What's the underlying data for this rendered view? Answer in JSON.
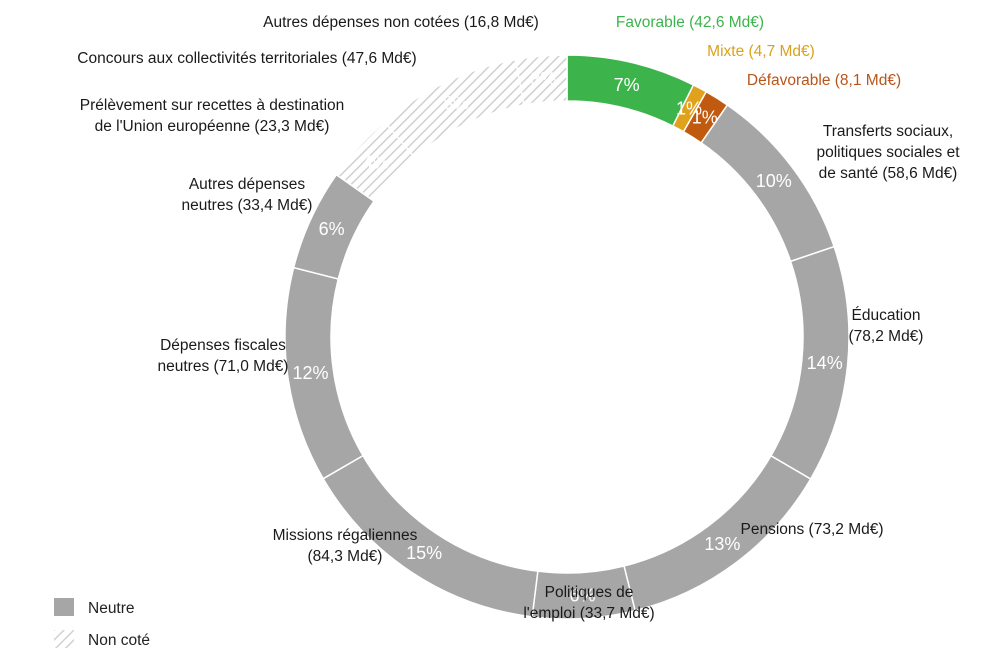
{
  "chart_data": {
    "type": "donut",
    "unit": "Md€",
    "segments": [
      {
        "name": "Favorable",
        "value": 42.6,
        "pct": "7%",
        "category": "favorable",
        "label_lines": [
          "Favorable (42,6 Md€)"
        ]
      },
      {
        "name": "Mixte",
        "value": 4.7,
        "pct": "1%",
        "category": "mixte",
        "label_lines": [
          "Mixte (4,7 Md€)"
        ]
      },
      {
        "name": "Défavorable",
        "value": 8.1,
        "pct": "1%",
        "category": "defavorable",
        "label_lines": [
          "Défavorable (8,1 Md€)"
        ]
      },
      {
        "name": "Transferts sociaux, politiques sociales et de santé",
        "value": 58.6,
        "pct": "10%",
        "category": "neutre",
        "label_lines": [
          "Transferts sociaux,",
          "politiques sociales et",
          "de santé (58,6 Md€)"
        ]
      },
      {
        "name": "Éducation",
        "value": 78.2,
        "pct": "14%",
        "category": "neutre",
        "label_lines": [
          "Éducation",
          "(78,2 Md€)"
        ]
      },
      {
        "name": "Pensions",
        "value": 73.2,
        "pct": "13%",
        "category": "neutre",
        "label_lines": [
          "Pensions (73,2 Md€)"
        ]
      },
      {
        "name": "Politiques de l'emploi",
        "value": 33.7,
        "pct": "6%",
        "category": "neutre",
        "label_lines": [
          "Politiques de",
          "l'emploi (33,7 Md€)"
        ]
      },
      {
        "name": "Missions régaliennes",
        "value": 84.3,
        "pct": "15%",
        "category": "neutre",
        "label_lines": [
          "Missions régaliennes",
          "(84,3 Md€)"
        ]
      },
      {
        "name": "Dépenses fiscales neutres",
        "value": 71.0,
        "pct": "12%",
        "category": "neutre",
        "label_lines": [
          "Dépenses fiscales",
          "neutres (71,0 Md€)"
        ]
      },
      {
        "name": "Autres dépenses neutres",
        "value": 33.4,
        "pct": "6%",
        "category": "neutre",
        "label_lines": [
          "Autres dépenses",
          "neutres (33,4 Md€)"
        ]
      },
      {
        "name": "Prélèvement sur recettes à destination de l'Union européenne",
        "value": 23.3,
        "pct": "4%",
        "category": "non_cote",
        "label_lines": [
          "Prélèvement sur recettes à destination",
          "de l'Union européenne (23,3 Md€)"
        ]
      },
      {
        "name": "Concours aux collectivités territoriales",
        "value": 47.6,
        "pct": "8%",
        "category": "non_cote",
        "label_lines": [
          "Concours aux collectivités territoriales (47,6 Md€)"
        ]
      },
      {
        "name": "Autres dépenses non cotées",
        "value": 16.8,
        "pct": "3%",
        "category": "non_cote",
        "label_lines": [
          "Autres dépenses non cotées (16,8 Md€)"
        ]
      }
    ],
    "legend": [
      {
        "label": "Neutre",
        "category": "neutre"
      },
      {
        "label": "Non coté",
        "category": "non_cote"
      }
    ]
  },
  "colors": {
    "favorable": "#3cb44b",
    "mixte": "#e0a21c",
    "defavorable": "#c05a10",
    "neutre": "#a6a6a6",
    "non_cote_stripe": "#cfcfcf",
    "separator": "#ffffff"
  },
  "label_colors": {
    "favorable": "#3cb44b",
    "mixte": "#d9a21c",
    "defavorable": "#b8551a",
    "neutre": "#1a1a1a",
    "non_cote": "#1a1a1a"
  }
}
